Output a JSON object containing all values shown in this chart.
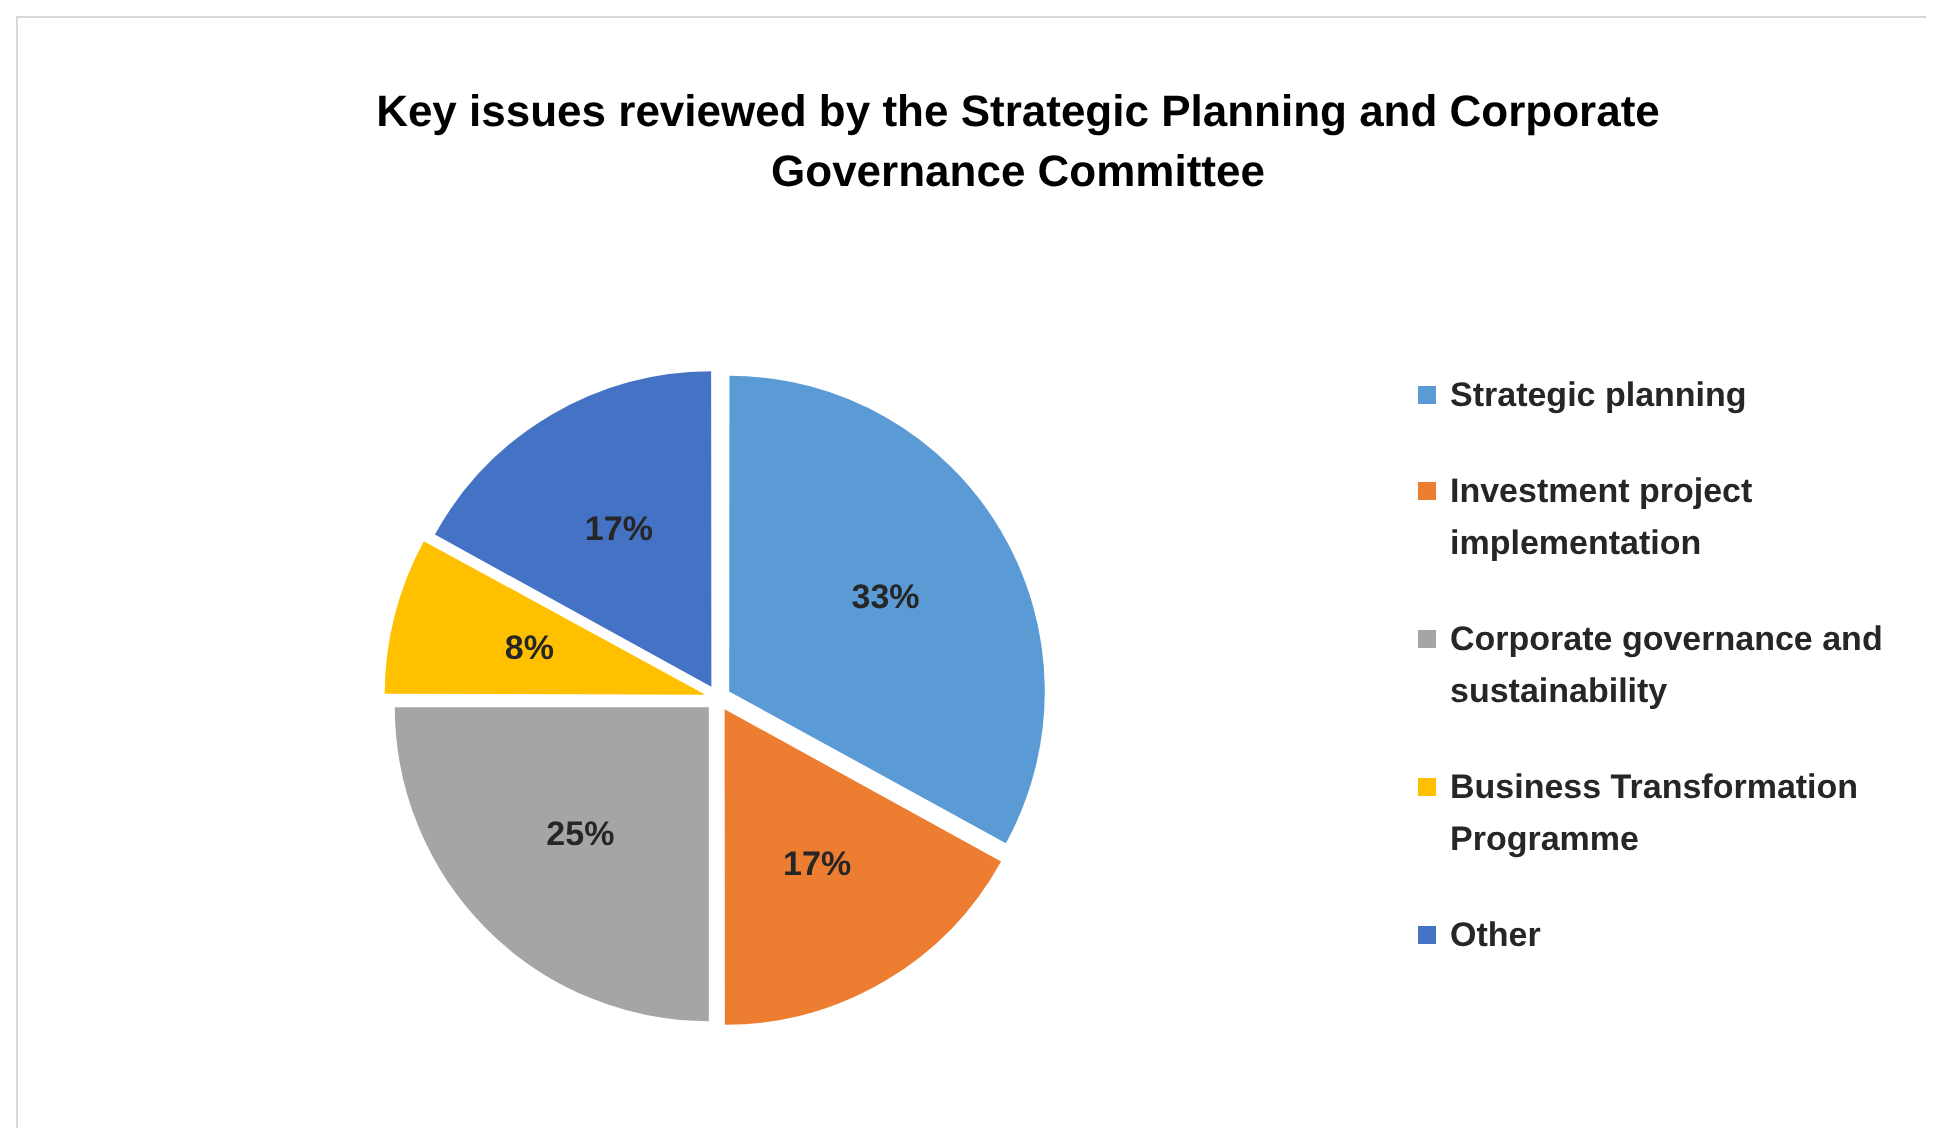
{
  "chart_data": {
    "type": "pie",
    "title": "Key issues reviewed by the Strategic Planning and Corporate Governance Committee",
    "categories": [
      "Strategic planning",
      "Investment project implementation",
      "Corporate governance and sustainability",
      "Business Transformation Programme",
      "Other"
    ],
    "values": [
      33,
      17,
      25,
      8,
      17
    ],
    "colors": [
      "#5b9bd5",
      "#ed7d31",
      "#a5a5a5",
      "#ffc000",
      "#4472c4"
    ],
    "value_labels": [
      "33%",
      "17%",
      "25%",
      "8%",
      "17%"
    ],
    "legend": "right"
  }
}
